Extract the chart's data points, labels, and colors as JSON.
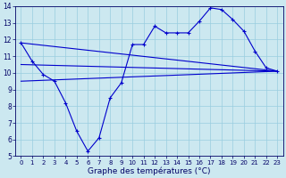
{
  "xlabel": "Graphe des températures (°C)",
  "xlim": [
    -0.5,
    23.5
  ],
  "ylim": [
    5,
    14
  ],
  "yticks": [
    5,
    6,
    7,
    8,
    9,
    10,
    11,
    12,
    13,
    14
  ],
  "xticks": [
    0,
    1,
    2,
    3,
    4,
    5,
    6,
    7,
    8,
    9,
    10,
    11,
    12,
    13,
    14,
    15,
    16,
    17,
    18,
    19,
    20,
    21,
    22,
    23
  ],
  "bg_color": "#cce8f0",
  "grid_color": "#99cde0",
  "line_color": "#0000cc",
  "line1_x": [
    0,
    1,
    2,
    3,
    4,
    5,
    6,
    7,
    8,
    9,
    10,
    11,
    12,
    13,
    14,
    15,
    16,
    17,
    18,
    19,
    20,
    21,
    22,
    23
  ],
  "line1_y": [
    11.8,
    10.7,
    9.9,
    9.5,
    8.2,
    6.5,
    5.3,
    6.1,
    8.5,
    9.4,
    11.7,
    11.7,
    12.8,
    12.4,
    12.4,
    12.4,
    13.1,
    13.9,
    13.8,
    13.2,
    12.5,
    11.3,
    10.3,
    10.1
  ],
  "line2_x": [
    0,
    23
  ],
  "line2_y": [
    11.8,
    10.1
  ],
  "line3_x": [
    0,
    23
  ],
  "line3_y": [
    10.5,
    10.1
  ],
  "line4_x": [
    0,
    23
  ],
  "line4_y": [
    9.5,
    10.1
  ],
  "tick_color": "#000066",
  "tick_fontsize": 5.0,
  "xlabel_fontsize": 6.5
}
